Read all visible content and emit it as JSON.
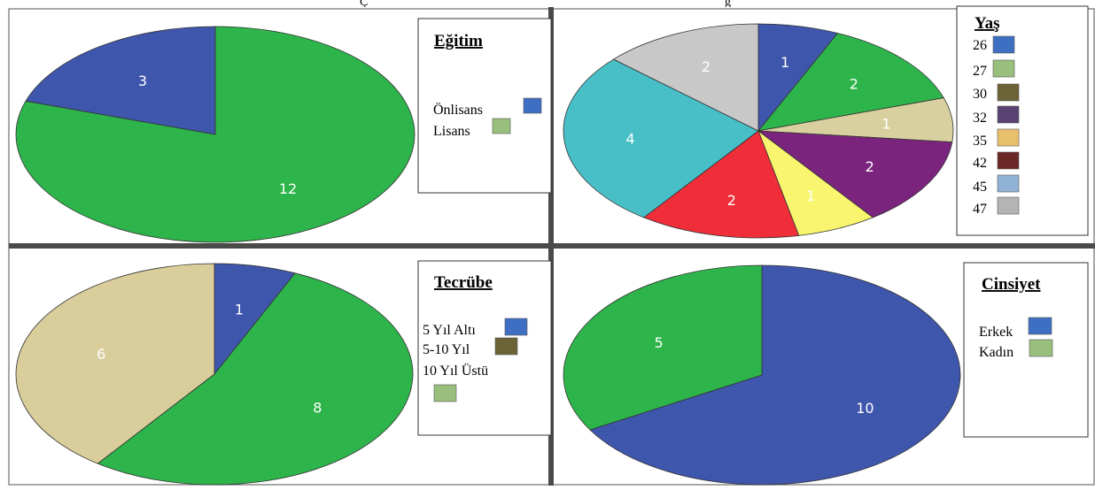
{
  "caption_fragments": [
    "Ç",
    "g"
  ],
  "chart_data": [
    {
      "type": "pie",
      "title": "Eğitim",
      "categories": [
        "Önlisans",
        "Lisans"
      ],
      "values": [
        3,
        12
      ],
      "data_labels": [
        "3",
        "12"
      ],
      "colors": [
        "#3f56ad",
        "#2db44a"
      ],
      "legend_colors": [
        "#3e6fc3",
        "#98bf7c"
      ],
      "legend_position": "right"
    },
    {
      "type": "pie",
      "title": "Yaş",
      "categories": [
        "26",
        "27",
        "30",
        "32",
        "35",
        "42",
        "45",
        "47"
      ],
      "values": [
        1,
        2,
        1,
        2,
        1,
        2,
        4,
        2
      ],
      "data_labels": [
        "1",
        "2",
        "1",
        "2",
        "1",
        "2",
        "4",
        "2"
      ],
      "colors": [
        "#3f56ad",
        "#2db44a",
        "#d8d09e",
        "#7b247d",
        "#f9f56e",
        "#ef2e39",
        "#48bfc6",
        "#c8c8c8"
      ],
      "legend_colors": [
        "#3e6fc3",
        "#98bf7c",
        "#6b6335",
        "#5a4273",
        "#e8c06d",
        "#6b2626",
        "#8fb2d5",
        "#b4b4b4"
      ],
      "legend_position": "right"
    },
    {
      "type": "pie",
      "title": "Tecrübe",
      "categories": [
        "5 Yıl Altı",
        "5-10 Yıl",
        "10 Yıl Üstü"
      ],
      "values": [
        1,
        8,
        6
      ],
      "data_labels": [
        "1",
        "8",
        "6"
      ],
      "colors": [
        "#3f56ad",
        "#2db44a",
        "#d8cd9b"
      ],
      "legend_colors": [
        "#3e6fc3",
        "#6b6335",
        "#98bf7c"
      ],
      "legend_position": "right"
    },
    {
      "type": "pie",
      "title": "Cinsiyet",
      "categories": [
        "Erkek",
        "Kadın"
      ],
      "values": [
        10,
        5
      ],
      "data_labels": [
        "10",
        "5"
      ],
      "colors": [
        "#3f56ad",
        "#2db44a"
      ],
      "legend_colors": [
        "#3e6fc3",
        "#98bf7c"
      ],
      "legend_position": "right"
    }
  ]
}
